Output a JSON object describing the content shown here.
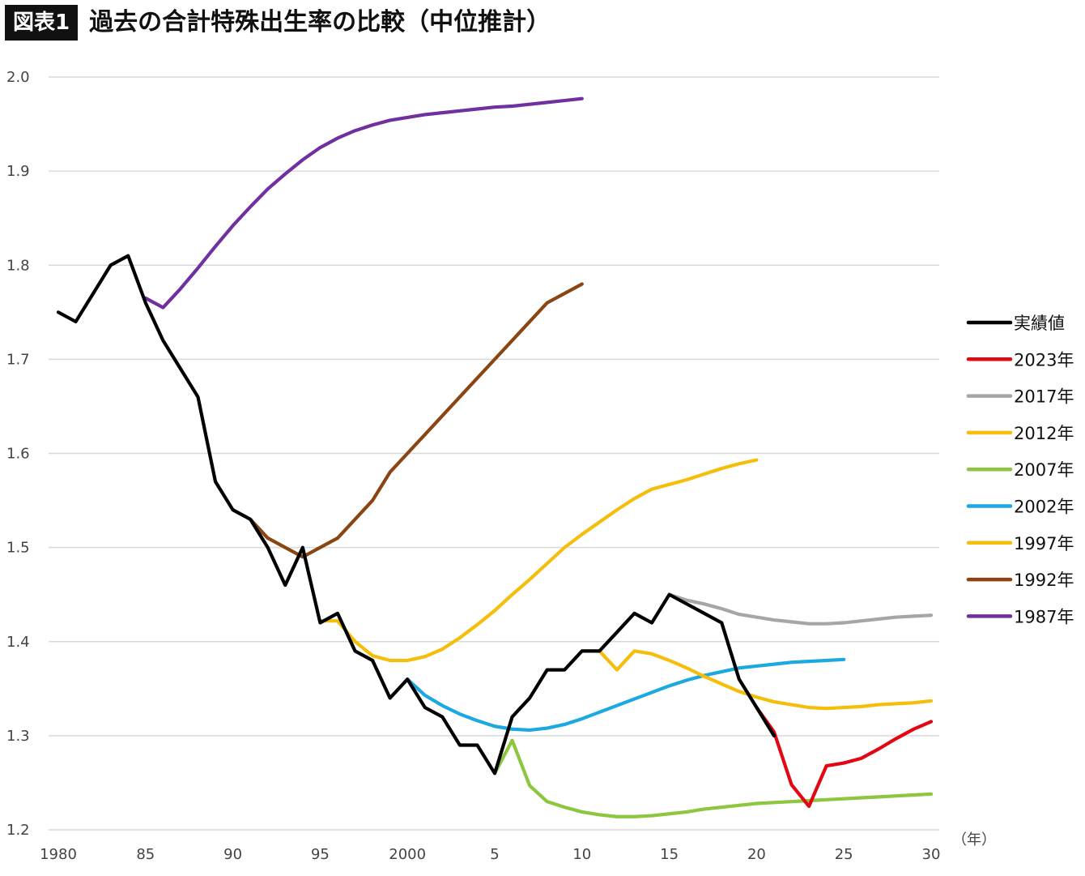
{
  "header": {
    "badge": "図表1",
    "title": "過去の合計特殊出生率の比較（中位推計）"
  },
  "chart_data": {
    "type": "line",
    "title": "過去の合計特殊出生率の比較（中位推計）",
    "xlabel": "",
    "ylabel": "",
    "xunit": "（年）",
    "xlim": [
      1980,
      2030
    ],
    "ylim": [
      1.2,
      2.0
    ],
    "grid": true,
    "legend_position": "right",
    "x_ticks": [
      {
        "value": 1980,
        "label": "1980"
      },
      {
        "value": 1985,
        "label": "85"
      },
      {
        "value": 1990,
        "label": "90"
      },
      {
        "value": 1995,
        "label": "95"
      },
      {
        "value": 2000,
        "label": "2000"
      },
      {
        "value": 2005,
        "label": "5"
      },
      {
        "value": 2010,
        "label": "10"
      },
      {
        "value": 2015,
        "label": "15"
      },
      {
        "value": 2020,
        "label": "20"
      },
      {
        "value": 2025,
        "label": "25"
      },
      {
        "value": 2030,
        "label": "30"
      }
    ],
    "y_ticks": [
      {
        "value": 1.2,
        "label": "1.2"
      },
      {
        "value": 1.3,
        "label": "1.3"
      },
      {
        "value": 1.4,
        "label": "1.4"
      },
      {
        "value": 1.5,
        "label": "1.5"
      },
      {
        "value": 1.6,
        "label": "1.6"
      },
      {
        "value": 1.7,
        "label": "1.7"
      },
      {
        "value": 1.8,
        "label": "1.8"
      },
      {
        "value": 1.9,
        "label": "1.9"
      },
      {
        "value": 2.0,
        "label": "2.0"
      }
    ],
    "series": [
      {
        "name": "1987年",
        "color": "#7030A0",
        "points": [
          [
            1985,
            1.765
          ],
          [
            1986,
            1.755
          ],
          [
            1987,
            1.775
          ],
          [
            1988,
            1.797
          ],
          [
            1989,
            1.82
          ],
          [
            1990,
            1.842
          ],
          [
            1991,
            1.862
          ],
          [
            1992,
            1.881
          ],
          [
            1993,
            1.897
          ],
          [
            1994,
            1.912
          ],
          [
            1995,
            1.925
          ],
          [
            1996,
            1.935
          ],
          [
            1997,
            1.943
          ],
          [
            1998,
            1.949
          ],
          [
            1999,
            1.954
          ],
          [
            2000,
            1.957
          ],
          [
            2001,
            1.96
          ],
          [
            2002,
            1.962
          ],
          [
            2003,
            1.964
          ],
          [
            2004,
            1.966
          ],
          [
            2005,
            1.968
          ],
          [
            2006,
            1.969
          ],
          [
            2007,
            1.971
          ],
          [
            2008,
            1.973
          ],
          [
            2009,
            1.975
          ],
          [
            2010,
            1.977
          ]
        ]
      },
      {
        "name": "1992年",
        "color": "#8B4513",
        "points": [
          [
            1990,
            1.54
          ],
          [
            1991,
            1.53
          ],
          [
            1992,
            1.51
          ],
          [
            1993,
            1.5
          ],
          [
            1994,
            1.49
          ],
          [
            1995,
            1.5
          ],
          [
            1996,
            1.51
          ],
          [
            1997,
            1.53
          ],
          [
            1998,
            1.55
          ],
          [
            1999,
            1.58
          ],
          [
            2000,
            1.6
          ],
          [
            2001,
            1.62
          ],
          [
            2002,
            1.64
          ],
          [
            2003,
            1.66
          ],
          [
            2004,
            1.68
          ],
          [
            2005,
            1.7
          ],
          [
            2006,
            1.72
          ],
          [
            2007,
            1.74
          ],
          [
            2008,
            1.76
          ],
          [
            2009,
            1.77
          ],
          [
            2010,
            1.78
          ]
        ]
      },
      {
        "name": "1997年",
        "color": "#F5BE0B",
        "points": [
          [
            1995,
            1.422
          ],
          [
            1996,
            1.422
          ],
          [
            1997,
            1.4
          ],
          [
            1998,
            1.385
          ],
          [
            1999,
            1.38
          ],
          [
            2000,
            1.38
          ],
          [
            2001,
            1.384
          ],
          [
            2002,
            1.392
          ],
          [
            2003,
            1.404
          ],
          [
            2004,
            1.418
          ],
          [
            2005,
            1.433
          ],
          [
            2006,
            1.45
          ],
          [
            2007,
            1.466
          ],
          [
            2008,
            1.483
          ],
          [
            2009,
            1.5
          ],
          [
            2010,
            1.514
          ],
          [
            2011,
            1.527
          ],
          [
            2012,
            1.54
          ],
          [
            2013,
            1.552
          ],
          [
            2014,
            1.562
          ],
          [
            2015,
            1.567
          ],
          [
            2016,
            1.572
          ],
          [
            2017,
            1.578
          ],
          [
            2018,
            1.584
          ],
          [
            2019,
            1.589
          ],
          [
            2020,
            1.593
          ]
        ]
      },
      {
        "name": "2002年",
        "color": "#1CA9E1",
        "points": [
          [
            2000,
            1.36
          ],
          [
            2001,
            1.343
          ],
          [
            2002,
            1.332
          ],
          [
            2003,
            1.323
          ],
          [
            2004,
            1.316
          ],
          [
            2005,
            1.31
          ],
          [
            2006,
            1.307
          ],
          [
            2007,
            1.306
          ],
          [
            2008,
            1.308
          ],
          [
            2009,
            1.312
          ],
          [
            2010,
            1.318
          ],
          [
            2011,
            1.325
          ],
          [
            2012,
            1.332
          ],
          [
            2013,
            1.339
          ],
          [
            2014,
            1.346
          ],
          [
            2015,
            1.353
          ],
          [
            2016,
            1.359
          ],
          [
            2017,
            1.364
          ],
          [
            2018,
            1.368
          ],
          [
            2019,
            1.372
          ],
          [
            2020,
            1.374
          ],
          [
            2021,
            1.376
          ],
          [
            2022,
            1.378
          ],
          [
            2023,
            1.379
          ],
          [
            2024,
            1.38
          ],
          [
            2025,
            1.381
          ]
        ]
      },
      {
        "name": "2007年",
        "color": "#8DC63F",
        "points": [
          [
            2005,
            1.26
          ],
          [
            2006,
            1.295
          ],
          [
            2007,
            1.247
          ],
          [
            2008,
            1.23
          ],
          [
            2009,
            1.224
          ],
          [
            2010,
            1.219
          ],
          [
            2011,
            1.216
          ],
          [
            2012,
            1.214
          ],
          [
            2013,
            1.214
          ],
          [
            2014,
            1.215
          ],
          [
            2015,
            1.217
          ],
          [
            2016,
            1.219
          ],
          [
            2017,
            1.222
          ],
          [
            2018,
            1.224
          ],
          [
            2019,
            1.226
          ],
          [
            2020,
            1.228
          ],
          [
            2021,
            1.229
          ],
          [
            2022,
            1.23
          ],
          [
            2023,
            1.231
          ],
          [
            2024,
            1.232
          ],
          [
            2025,
            1.233
          ],
          [
            2026,
            1.234
          ],
          [
            2027,
            1.235
          ],
          [
            2028,
            1.236
          ],
          [
            2029,
            1.237
          ],
          [
            2030,
            1.238
          ]
        ]
      },
      {
        "name": "2012年",
        "color": "#F5BE0B",
        "points": [
          [
            2010,
            1.39
          ],
          [
            2011,
            1.39
          ],
          [
            2012,
            1.37
          ],
          [
            2013,
            1.39
          ],
          [
            2014,
            1.387
          ],
          [
            2015,
            1.38
          ],
          [
            2016,
            1.372
          ],
          [
            2017,
            1.363
          ],
          [
            2018,
            1.355
          ],
          [
            2019,
            1.347
          ],
          [
            2020,
            1.341
          ],
          [
            2021,
            1.336
          ],
          [
            2022,
            1.333
          ],
          [
            2023,
            1.33
          ],
          [
            2024,
            1.329
          ],
          [
            2025,
            1.33
          ],
          [
            2026,
            1.331
          ],
          [
            2027,
            1.333
          ],
          [
            2028,
            1.334
          ],
          [
            2029,
            1.335
          ],
          [
            2030,
            1.337
          ]
        ]
      },
      {
        "name": "2017年",
        "color": "#A6A6A6",
        "points": [
          [
            2015,
            1.45
          ],
          [
            2016,
            1.444
          ],
          [
            2017,
            1.44
          ],
          [
            2018,
            1.435
          ],
          [
            2019,
            1.429
          ],
          [
            2020,
            1.426
          ],
          [
            2021,
            1.423
          ],
          [
            2022,
            1.421
          ],
          [
            2023,
            1.419
          ],
          [
            2024,
            1.419
          ],
          [
            2025,
            1.42
          ],
          [
            2026,
            1.422
          ],
          [
            2027,
            1.424
          ],
          [
            2028,
            1.426
          ],
          [
            2029,
            1.427
          ],
          [
            2030,
            1.428
          ]
        ]
      },
      {
        "name": "2023年",
        "color": "#E30613",
        "points": [
          [
            2020,
            1.33
          ],
          [
            2021,
            1.304
          ],
          [
            2022,
            1.248
          ],
          [
            2023,
            1.225
          ],
          [
            2024,
            1.268
          ],
          [
            2025,
            1.271
          ],
          [
            2026,
            1.276
          ],
          [
            2027,
            1.286
          ],
          [
            2028,
            1.297
          ],
          [
            2029,
            1.307
          ],
          [
            2030,
            1.315
          ]
        ]
      },
      {
        "name": "実績値",
        "color": "#000000",
        "points": [
          [
            1980,
            1.75
          ],
          [
            1981,
            1.74
          ],
          [
            1982,
            1.77
          ],
          [
            1983,
            1.8
          ],
          [
            1984,
            1.81
          ],
          [
            1985,
            1.76
          ],
          [
            1986,
            1.72
          ],
          [
            1987,
            1.69
          ],
          [
            1988,
            1.66
          ],
          [
            1989,
            1.57
          ],
          [
            1990,
            1.54
          ],
          [
            1991,
            1.53
          ],
          [
            1992,
            1.5
          ],
          [
            1993,
            1.46
          ],
          [
            1994,
            1.5
          ],
          [
            1995,
            1.42
          ],
          [
            1996,
            1.43
          ],
          [
            1997,
            1.39
          ],
          [
            1998,
            1.38
          ],
          [
            1999,
            1.34
          ],
          [
            2000,
            1.36
          ],
          [
            2001,
            1.33
          ],
          [
            2002,
            1.32
          ],
          [
            2003,
            1.29
          ],
          [
            2004,
            1.29
          ],
          [
            2005,
            1.26
          ],
          [
            2006,
            1.32
          ],
          [
            2007,
            1.34
          ],
          [
            2008,
            1.37
          ],
          [
            2009,
            1.37
          ],
          [
            2010,
            1.39
          ],
          [
            2011,
            1.39
          ],
          [
            2012,
            1.41
          ],
          [
            2013,
            1.43
          ],
          [
            2014,
            1.42
          ],
          [
            2015,
            1.45
          ],
          [
            2016,
            1.44
          ],
          [
            2017,
            1.43
          ],
          [
            2018,
            1.42
          ],
          [
            2019,
            1.36
          ],
          [
            2020,
            1.33
          ],
          [
            2021,
            1.3
          ]
        ]
      }
    ],
    "legend": [
      {
        "name": "実績値",
        "color": "#000000"
      },
      {
        "name": "2023年",
        "color": "#E30613"
      },
      {
        "name": "2017年",
        "color": "#A6A6A6"
      },
      {
        "name": "2012年",
        "color": "#F5BE0B"
      },
      {
        "name": "2007年",
        "color": "#8DC63F"
      },
      {
        "name": "2002年",
        "color": "#1CA9E1"
      },
      {
        "name": "1997年",
        "color": "#F5BE0B"
      },
      {
        "name": "1992年",
        "color": "#8B4513"
      },
      {
        "name": "1987年",
        "color": "#7030A0"
      }
    ]
  }
}
